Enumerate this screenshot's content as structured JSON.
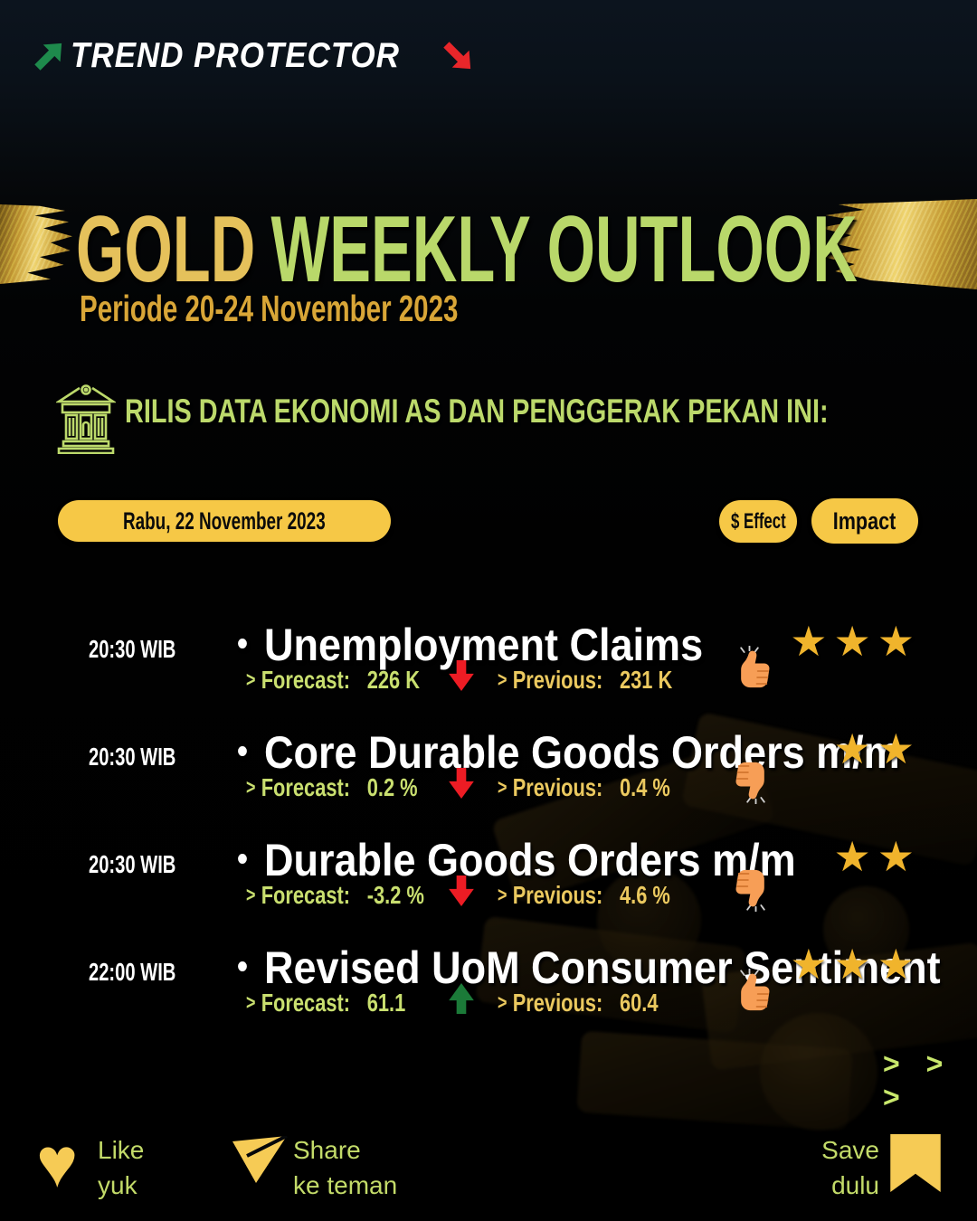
{
  "logo": {
    "text": "TREND PROTECTOR"
  },
  "title": {
    "word1": "GOLD",
    "word2": "WEEKLY OUTLOOK",
    "subtitle": "Periode 20-24 November 2023"
  },
  "section_header": "RILIS DATA EKONOMI AS DAN PENGGERAK PEKAN INI:",
  "pills": {
    "date": "Rabu, 22 November 2023",
    "effect": "$ Effect",
    "impact": "Impact"
  },
  "labels": {
    "forecast": "Forecast:",
    "previous": "Previous:"
  },
  "events": [
    {
      "time": "20:30 WIB",
      "name": "Unemployment Claims",
      "forecast": "226 K",
      "direction": "down",
      "previous": "231 K",
      "sentiment": "up",
      "stars": 3
    },
    {
      "time": "20:30 WIB",
      "name": "Core Durable Goods Orders m/m",
      "forecast": "0.2 %",
      "direction": "down",
      "previous": "0.4 %",
      "sentiment": "down",
      "stars": 2
    },
    {
      "time": "20:30 WIB",
      "name": "Durable Goods Orders m/m",
      "forecast": "-3.2 %",
      "direction": "down",
      "previous": "4.6 %",
      "sentiment": "down",
      "stars": 2
    },
    {
      "time": "22:00 WIB",
      "name": "Revised UoM Consumer Sentiment",
      "forecast": "61.1",
      "direction": "up",
      "previous": "60.4",
      "sentiment": "up",
      "stars": 3
    }
  ],
  "icons": {
    "star": "★",
    "bullet": "•",
    "chevron": ">",
    "heart": "♥",
    "logo_up_arrow": "trend-up-arrow",
    "logo_down_arrow": "trend-down-arrow",
    "bank": "bank-building-icon",
    "thumb": "thumb-hand-icon",
    "paper_plane": "share-plane-icon",
    "bookmark": "save-bookmark-icon"
  },
  "more_indicator": "> > >",
  "footer": {
    "like": {
      "line1": "Like",
      "line2": "yuk"
    },
    "share": {
      "line1": "Share",
      "line2": "ke teman"
    },
    "save": {
      "line1": "Save",
      "line2": "dulu"
    }
  },
  "colors": {
    "gold_title": "#E5C15B",
    "green_title": "#B9D86A",
    "gold_sub": "#D9A637",
    "pill_yellow": "#F6C846",
    "star_gold": "#F0B42C",
    "red_arrow": "#ED1C24",
    "green_arrow": "#1B7A38",
    "forecast_green": "#C9DF6F",
    "previous_gold": "#EBC95F",
    "footer_green": "#C3DB69",
    "icon_yellow": "#F6CB55",
    "background": "#04070B"
  }
}
